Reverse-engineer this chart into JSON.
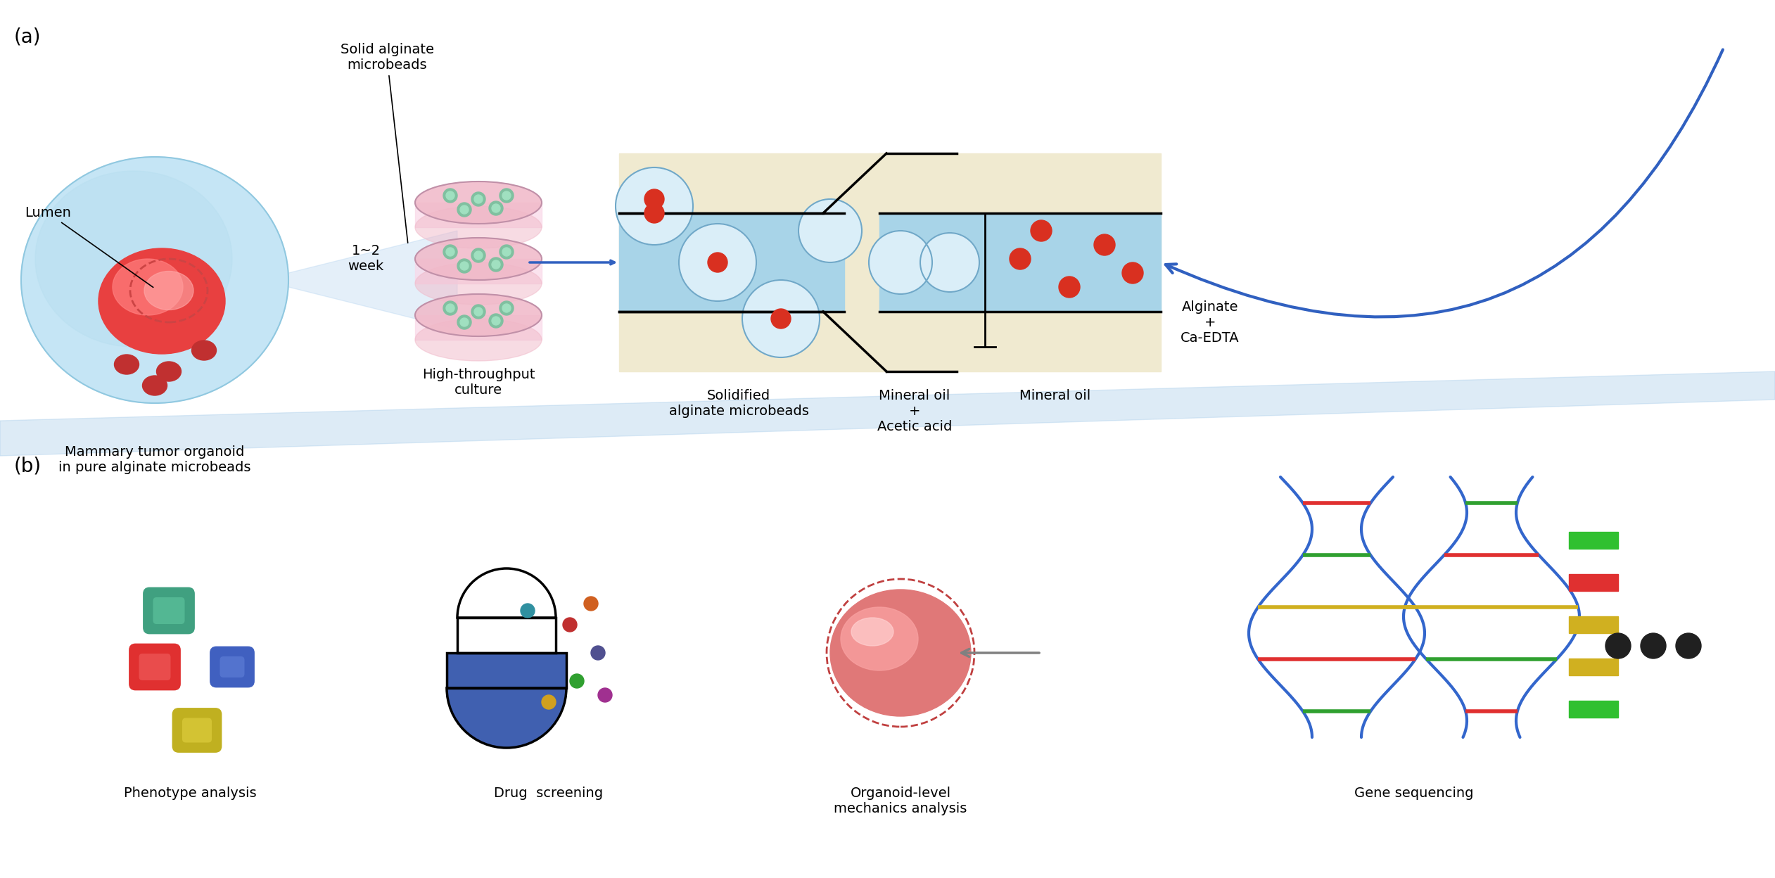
{
  "bg_color": "#ffffff",
  "panel_a_label": "(a)",
  "panel_b_label": "(b)",
  "label_fontsize": 20,
  "text_fontsize": 14,
  "small_text_fontsize": 12,
  "organoid_label": "Mammary tumor organoid\nin pure alginate microbeads",
  "culture_label": "High-throughput\nculture",
  "solidified_label": "Solidified\nalginate microbeads",
  "mineral_oil_acetic_label": "Mineral oil\n+\nAcetic acid",
  "mineral_oil_label": "Mineral oil",
  "alginate_label": "Alginate\n+\nCa-EDTA",
  "lumen_label": "Lumen",
  "solid_alginate_label": "Solid alginate\nmicrobeads",
  "week_label": "1~2\nweek",
  "phenotype_label": "Phenotype analysis",
  "drug_label": "Drug  screening",
  "organoid_mech_label": "Organoid-level\nmechanics analysis",
  "gene_label": "Gene sequencing",
  "arrow_color": "#3060c0",
  "blue_fill": "#a8d4e8",
  "light_blue": "#c5e5f5",
  "beige_fill": "#f0ead0",
  "dark_outline": "#1a1a1a",
  "red_cell": "#d93020",
  "pink_bead": "#f0b8c8",
  "light_pink": "#fad8e8",
  "separator_color": "#b0cce0"
}
